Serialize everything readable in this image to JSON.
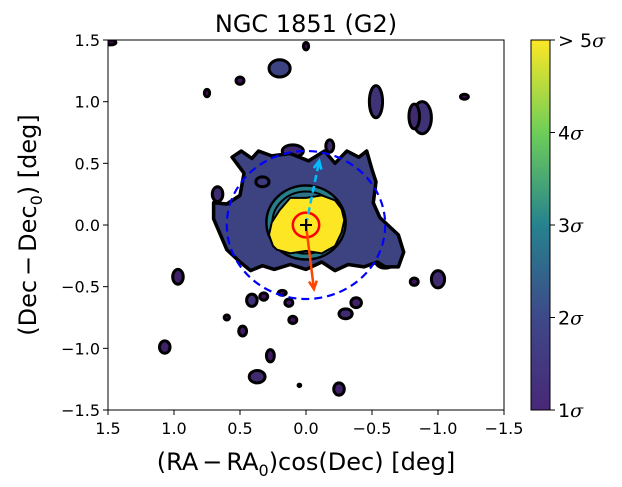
{
  "chart_data": {
    "type": "heatmap",
    "title": "NGC 1851 (G2)",
    "xlabel_parts": [
      "(RA",
      "−",
      "RA",
      "0",
      ")cos(Dec) [deg]"
    ],
    "ylabel_parts": [
      "(Dec",
      "−",
      "Dec",
      "0",
      ") [deg]"
    ],
    "xlim": [
      1.5,
      -1.5
    ],
    "ylim": [
      -1.5,
      1.5
    ],
    "xticks": [
      1.5,
      1.0,
      0.5,
      0.0,
      -0.5,
      -1.0,
      -1.5
    ],
    "xtick_labels": [
      "1.5",
      "1.0",
      "0.5",
      "0.0",
      "−0.5",
      "−1.0",
      "−1.5"
    ],
    "yticks": [
      1.5,
      1.0,
      0.5,
      0.0,
      -0.5,
      -1.0,
      -1.5
    ],
    "ytick_labels": [
      "1.5",
      "1.0",
      "0.5",
      "0.0",
      "−0.5",
      "−1.0",
      "−1.5"
    ],
    "colorbar": {
      "min": 1,
      "max": 5,
      "ticks": [
        1,
        2,
        3,
        4,
        5
      ],
      "tick_labels": [
        {
          "prefix": "",
          "num": "1",
          "sym": "σ"
        },
        {
          "prefix": "",
          "num": "2",
          "sym": "σ"
        },
        {
          "prefix": "",
          "num": "3",
          "sym": "σ"
        },
        {
          "prefix": "",
          "num": "4",
          "sym": "σ"
        },
        {
          "prefix": "> ",
          "num": "5",
          "sym": "σ"
        }
      ],
      "colors": [
        "#440154",
        "#3b528b",
        "#21918c",
        "#5ec962",
        "#fde725"
      ]
    },
    "center_marker": {
      "x": 0.0,
      "y": 0.0,
      "symbol": "+"
    },
    "core_circle": {
      "x": 0.0,
      "y": 0.0,
      "radius": 0.1,
      "color": "#ff0000"
    },
    "tidal_circle": {
      "x": 0.0,
      "y": 0.0,
      "radius": 0.6,
      "color": "#0000ff"
    },
    "arrows": [
      {
        "name": "proper-motion-arrow",
        "x0": 0.0,
        "y0": 0.0,
        "x1": -0.06,
        "y1": -0.52,
        "color": "#ff4500",
        "dashed": false
      },
      {
        "name": "galactic-center-arrow",
        "x0": 0.0,
        "y0": 0.0,
        "x1": -0.1,
        "y1": 0.52,
        "color": "#00bfff",
        "dashed": true
      }
    ],
    "central_blob": {
      "x": [
        0.56,
        0.49,
        0.41,
        0.36,
        0.26,
        0.12,
        -0.02,
        -0.14,
        -0.22,
        -0.31,
        -0.4,
        -0.46,
        -0.5,
        -0.53,
        -0.51,
        -0.56,
        -0.62,
        -0.7,
        -0.74,
        -0.7,
        -0.6,
        -0.54,
        -0.44,
        -0.32,
        -0.22,
        -0.12,
        0.0,
        0.12,
        0.24,
        0.33,
        0.42,
        0.5,
        0.6,
        0.66,
        0.7,
        0.7,
        0.6,
        0.5,
        0.47,
        0.56
      ],
      "y": [
        0.55,
        0.6,
        0.54,
        0.6,
        0.56,
        0.58,
        0.52,
        0.6,
        0.5,
        0.6,
        0.55,
        0.6,
        0.45,
        0.35,
        0.18,
        0.06,
        0.0,
        -0.08,
        -0.22,
        -0.34,
        -0.34,
        -0.3,
        -0.34,
        -0.32,
        -0.37,
        -0.3,
        -0.36,
        -0.32,
        -0.36,
        -0.33,
        -0.37,
        -0.3,
        -0.2,
        -0.05,
        0.05,
        0.18,
        0.17,
        0.24,
        0.42,
        0.55
      ],
      "level": 1.8
    },
    "cyan_ring": {
      "x": 0.0,
      "y": 0.02,
      "rx": 0.3,
      "ry": 0.3,
      "level": 2.7
    },
    "yellow_core": {
      "x": [
        0.2,
        0.26,
        0.28,
        0.25,
        0.22,
        0.12,
        0.0,
        -0.12,
        -0.22,
        -0.27,
        -0.29,
        -0.27,
        -0.22,
        -0.12,
        0.0,
        0.12
      ],
      "y": [
        0.12,
        0.02,
        -0.08,
        -0.17,
        -0.2,
        -0.23,
        -0.21,
        -0.23,
        -0.17,
        -0.06,
        0.04,
        0.13,
        0.2,
        0.24,
        0.22,
        0.22
      ],
      "level": 5.0
    },
    "small_blob_near_core": {
      "x": 0.33,
      "y": 0.35,
      "rx": 0.05,
      "ry": 0.04,
      "level": 1.7
    },
    "blobs": [
      {
        "x": 0.41,
        "y": -0.61,
        "rx": 0.04,
        "ry": 0.05,
        "level": 1.6
      },
      {
        "x": 0.1,
        "y": 0.6,
        "rx": 0.08,
        "ry": 0.05,
        "level": 1.5
      },
      {
        "x": -0.53,
        "y": 1.0,
        "rx": 0.05,
        "ry": 0.13,
        "level": 1.6
      },
      {
        "x": -0.88,
        "y": 0.87,
        "rx": 0.07,
        "ry": 0.13,
        "level": 1.6
      },
      {
        "x": -0.18,
        "y": 0.64,
        "rx": 0.03,
        "ry": 0.05,
        "level": 1.5
      },
      {
        "x": -0.82,
        "y": 0.88,
        "rx": 0.04,
        "ry": 0.1,
        "level": 1.5
      },
      {
        "x": 0.2,
        "y": 1.27,
        "rx": 0.08,
        "ry": 0.07,
        "level": 1.8
      },
      {
        "x": 0.5,
        "y": 1.17,
        "rx": 0.03,
        "ry": 0.03,
        "level": 1.2
      },
      {
        "x": 0.75,
        "y": 1.07,
        "rx": 0.02,
        "ry": 0.03,
        "level": 1.1
      },
      {
        "x": 0.0,
        "y": 1.45,
        "rx": 0.02,
        "ry": 0.03,
        "level": 1.1
      },
      {
        "x": 1.48,
        "y": 1.48,
        "rx": 0.04,
        "ry": 0.02,
        "level": 1.1
      },
      {
        "x": -1.2,
        "y": 1.04,
        "rx": 0.03,
        "ry": 0.02,
        "level": 1.1
      },
      {
        "x": 0.67,
        "y": 0.25,
        "rx": 0.04,
        "ry": 0.06,
        "level": 1.5
      },
      {
        "x": -0.35,
        "y": 0.45,
        "rx": 0.03,
        "ry": 0.04,
        "level": 1.4
      },
      {
        "x": 0.13,
        "y": -0.63,
        "rx": 0.03,
        "ry": 0.03,
        "level": 1.3
      },
      {
        "x": -0.3,
        "y": -0.72,
        "rx": 0.05,
        "ry": 0.04,
        "level": 1.5
      },
      {
        "x": -0.38,
        "y": -0.63,
        "rx": 0.04,
        "ry": 0.04,
        "level": 1.4
      },
      {
        "x": -0.6,
        "y": -0.3,
        "rx": 0.07,
        "ry": 0.05,
        "level": 1.5
      },
      {
        "x": -0.82,
        "y": -0.46,
        "rx": 0.03,
        "ry": 0.03,
        "level": 1.2
      },
      {
        "x": -1.0,
        "y": -0.44,
        "rx": 0.05,
        "ry": 0.07,
        "level": 1.5
      },
      {
        "x": 0.18,
        "y": -0.55,
        "rx": 0.03,
        "ry": 0.02,
        "level": 1.1
      },
      {
        "x": 0.1,
        "y": -0.77,
        "rx": 0.03,
        "ry": 0.03,
        "level": 1.2
      },
      {
        "x": 0.32,
        "y": -0.58,
        "rx": 0.03,
        "ry": 0.03,
        "level": 1.2
      },
      {
        "x": 0.48,
        "y": -0.86,
        "rx": 0.03,
        "ry": 0.04,
        "level": 1.3
      },
      {
        "x": 0.6,
        "y": -0.75,
        "rx": 0.02,
        "ry": 0.02,
        "level": 1.1
      },
      {
        "x": 0.97,
        "y": -0.42,
        "rx": 0.04,
        "ry": 0.06,
        "level": 1.4
      },
      {
        "x": 1.07,
        "y": -0.99,
        "rx": 0.04,
        "ry": 0.05,
        "level": 1.4
      },
      {
        "x": 0.27,
        "y": -1.06,
        "rx": 0.03,
        "ry": 0.05,
        "level": 1.3
      },
      {
        "x": 0.37,
        "y": -1.23,
        "rx": 0.06,
        "ry": 0.05,
        "level": 1.5
      },
      {
        "x": 0.05,
        "y": -1.3,
        "rx": 0.01,
        "ry": 0.01,
        "level": 1.0
      },
      {
        "x": -0.25,
        "y": -1.33,
        "rx": 0.04,
        "ry": 0.05,
        "level": 1.4
      }
    ]
  }
}
